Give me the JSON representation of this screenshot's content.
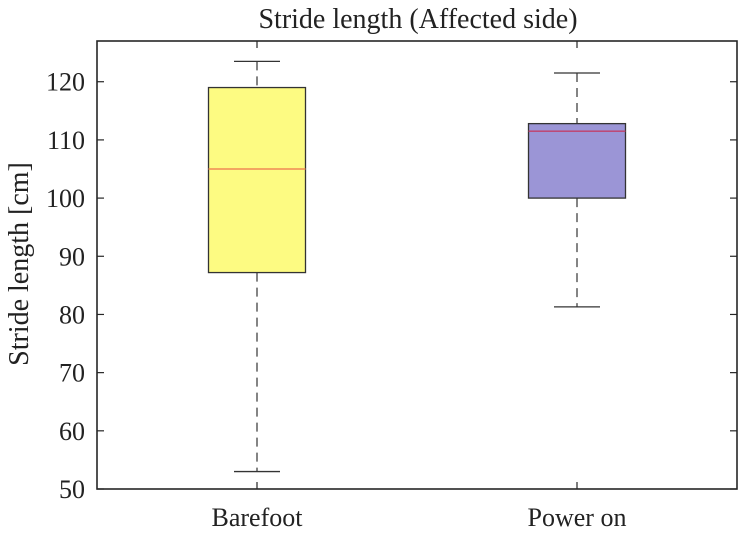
{
  "chart_data": {
    "type": "box",
    "title": "Stride length (Affected side)",
    "xlabel": "",
    "ylabel": "Stride length [cm]",
    "ylim": [
      50,
      127
    ],
    "yticks": [
      50,
      60,
      70,
      80,
      90,
      100,
      110,
      120
    ],
    "grid": false,
    "categories": [
      "Barefoot",
      "Power on"
    ],
    "boxes": [
      {
        "category": "Barefoot",
        "whisker_low": 53,
        "q1": 87.2,
        "median": 105,
        "q3": 119,
        "whisker_high": 123.5,
        "fill": "#fdfb82",
        "median_color": "#f08a55"
      },
      {
        "category": "Power on",
        "whisker_low": 81.3,
        "q1": 100,
        "median": 111.5,
        "q3": 112.8,
        "whisker_high": 121.5,
        "fill": "#9b95d6",
        "median_color": "#c0406a"
      }
    ]
  }
}
